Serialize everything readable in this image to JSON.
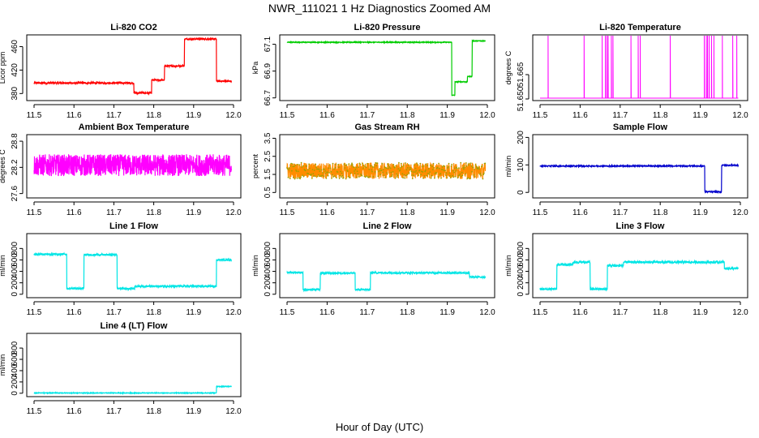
{
  "figure": {
    "title": "NWR_111021  1 Hz Diagnostics Zoomed AM",
    "xlabel": "Hour of Day (UTC)"
  },
  "chart_data": [
    {
      "type": "line",
      "title": "Li-820 CO2",
      "ylabel": "Licor ppm",
      "color": "#ff0000",
      "xlim": [
        11.5,
        12.0
      ],
      "ylim": [
        368,
        480
      ],
      "x_ticks": [
        "11.5",
        "11.6",
        "11.7",
        "11.8",
        "11.9",
        "12.0"
      ],
      "y_ticks": [
        "380",
        "420",
        "460"
      ],
      "y_tick_values": [
        380,
        420,
        460
      ],
      "noise": 1.5,
      "segments": [
        [
          11.5,
          11.75,
          398
        ],
        [
          11.75,
          11.795,
          381
        ],
        [
          11.795,
          11.827,
          403
        ],
        [
          11.827,
          11.877,
          427
        ],
        [
          11.877,
          11.957,
          473
        ],
        [
          11.957,
          11.995,
          401
        ]
      ]
    },
    {
      "type": "line",
      "title": "Li-820 Pressure",
      "ylabel": "kPa",
      "color": "#00cc00",
      "xlim": [
        11.5,
        12.0
      ],
      "ylim": [
        66.68,
        67.17
      ],
      "x_ticks": [
        "11.5",
        "11.6",
        "11.7",
        "11.8",
        "11.9",
        "12.0"
      ],
      "y_ticks": [
        "66.7",
        "66.9",
        "67.1"
      ],
      "y_tick_values": [
        66.7,
        66.9,
        67.1
      ],
      "noise": 0.003,
      "segments": [
        [
          11.5,
          11.911,
          67.115
        ],
        [
          11.911,
          11.919,
          66.72
        ],
        [
          11.919,
          11.95,
          66.82
        ],
        [
          11.95,
          11.962,
          66.86
        ],
        [
          11.962,
          11.995,
          67.125
        ]
      ]
    },
    {
      "type": "line",
      "title": "Li-820 Temperature",
      "ylabel": "degrees C",
      "color": "#ff00ff",
      "xlim": [
        11.5,
        12.0
      ],
      "ylim": [
        51.649,
        51.6895
      ],
      "x_ticks": [
        "11.5",
        "11.6",
        "11.7",
        "11.8",
        "11.9",
        "12.0"
      ],
      "y_ticks": [
        "51.650",
        "51.665"
      ],
      "y_tick_values": [
        51.65,
        51.665
      ],
      "noise": 0,
      "baseline": 51.6505,
      "spike_value": 51.689,
      "spikes": [
        11.52,
        11.61,
        11.655,
        11.663,
        11.667,
        11.67,
        11.678,
        11.682,
        11.727,
        11.745,
        11.75,
        11.825,
        11.91,
        11.915,
        11.918,
        11.922,
        11.928,
        11.934,
        11.955,
        11.981,
        11.991
      ]
    },
    {
      "type": "line",
      "title": "Ambient Box Temperature",
      "ylabel": "degrees C",
      "color": "#ff00ff",
      "xlim": [
        11.5,
        12.0
      ],
      "ylim": [
        27.5,
        28.95
      ],
      "x_ticks": [
        "11.5",
        "11.6",
        "11.7",
        "11.8",
        "11.9",
        "12.0"
      ],
      "y_ticks": [
        "27.6",
        "28.2",
        "28.8"
      ],
      "y_tick_values": [
        27.6,
        28.2,
        28.8
      ],
      "noise": 0.25,
      "noise_clip": [
        27.55,
        28.85
      ],
      "segments": [
        [
          11.5,
          11.995,
          28.25
        ]
      ]
    },
    {
      "type": "line",
      "title": "Gas Stream RH",
      "ylabel": "percent",
      "color": "#ff8c00",
      "dot_color": "#a0a000",
      "xlim": [
        11.5,
        12.0
      ],
      "ylim": [
        0.2,
        3.7
      ],
      "x_ticks": [
        "11.5",
        "11.6",
        "11.7",
        "11.8",
        "11.9",
        "12.0"
      ],
      "y_ticks": [
        "0.5",
        "1.5",
        "2.5",
        "3.5"
      ],
      "y_tick_values": [
        0.5,
        1.5,
        2.5,
        3.5
      ],
      "noise": 0.45,
      "noise_clip": [
        0.35,
        3.6
      ],
      "segments": [
        [
          11.5,
          11.995,
          1.7
        ]
      ]
    },
    {
      "type": "line",
      "title": "Sample Flow",
      "ylabel": "ml/min",
      "color": "#0000cc",
      "xlim": [
        11.5,
        12.0
      ],
      "ylim": [
        -20,
        210
      ],
      "x_ticks": [
        "11.5",
        "11.6",
        "11.7",
        "11.8",
        "11.9",
        "12.0"
      ],
      "y_ticks": [
        "0",
        "100",
        "200"
      ],
      "y_tick_values": [
        0,
        100,
        200
      ],
      "noise": 2,
      "segments": [
        [
          11.5,
          11.911,
          96
        ],
        [
          11.911,
          11.953,
          2
        ],
        [
          11.953,
          11.995,
          99
        ]
      ]
    },
    {
      "type": "line",
      "title": "Line 1 Flow",
      "ylabel": "ml/min",
      "color": "#00e5e5",
      "xlim": [
        11.5,
        12.0
      ],
      "ylim": [
        -60,
        1060
      ],
      "x_ticks": [
        "11.5",
        "11.6",
        "11.7",
        "11.8",
        "11.9",
        "12.0"
      ],
      "y_ticks": [
        "0",
        "200",
        "400",
        "600",
        "800"
      ],
      "y_tick_values": [
        0,
        200,
        400,
        600,
        800
      ],
      "noise": 15,
      "segments": [
        [
          11.5,
          11.582,
          700
        ],
        [
          11.582,
          11.625,
          100
        ],
        [
          11.625,
          11.708,
          690
        ],
        [
          11.708,
          11.752,
          100
        ],
        [
          11.752,
          11.957,
          140
        ],
        [
          11.957,
          11.995,
          600
        ]
      ]
    },
    {
      "type": "line",
      "title": "Line 2 Flow",
      "ylabel": "ml/min",
      "color": "#00e5e5",
      "xlim": [
        11.5,
        12.0
      ],
      "ylim": [
        -60,
        1060
      ],
      "x_ticks": [
        "11.5",
        "11.6",
        "11.7",
        "11.8",
        "11.9",
        "12.0"
      ],
      "y_ticks": [
        "0",
        "200",
        "400",
        "600",
        "800"
      ],
      "y_tick_values": [
        0,
        200,
        400,
        600,
        800
      ],
      "noise": 15,
      "segments": [
        [
          11.5,
          11.54,
          380
        ],
        [
          11.54,
          11.583,
          80
        ],
        [
          11.583,
          11.67,
          370
        ],
        [
          11.67,
          11.708,
          80
        ],
        [
          11.708,
          11.955,
          375
        ],
        [
          11.955,
          11.995,
          300
        ]
      ]
    },
    {
      "type": "line",
      "title": "Line 3 Flow",
      "ylabel": "ml/min",
      "color": "#00e5e5",
      "xlim": [
        11.5,
        12.0
      ],
      "ylim": [
        -60,
        1060
      ],
      "x_ticks": [
        "11.5",
        "11.6",
        "11.7",
        "11.8",
        "11.9",
        "12.0"
      ],
      "y_ticks": [
        "0",
        "200",
        "400",
        "600",
        "800"
      ],
      "y_tick_values": [
        0,
        200,
        400,
        600,
        800
      ],
      "noise": 20,
      "segments": [
        [
          11.5,
          11.542,
          90
        ],
        [
          11.542,
          11.582,
          520
        ],
        [
          11.582,
          11.625,
          560
        ],
        [
          11.625,
          11.668,
          90
        ],
        [
          11.668,
          11.708,
          500
        ],
        [
          11.708,
          11.96,
          560
        ],
        [
          11.96,
          11.995,
          450
        ]
      ]
    },
    {
      "type": "line",
      "title": "Line 4 (LT) Flow",
      "ylabel": "ml/min",
      "color": "#00e5e5",
      "xlim": [
        11.5,
        12.0
      ],
      "ylim": [
        -60,
        1060
      ],
      "x_ticks": [
        "11.5",
        "11.6",
        "11.7",
        "11.8",
        "11.9",
        "12.0"
      ],
      "y_ticks": [
        "0",
        "200",
        "400",
        "600",
        "800"
      ],
      "y_tick_values": [
        0,
        200,
        400,
        600,
        800
      ],
      "noise": 6,
      "segments": [
        [
          11.5,
          11.957,
          5
        ],
        [
          11.957,
          11.995,
          120
        ]
      ]
    }
  ]
}
